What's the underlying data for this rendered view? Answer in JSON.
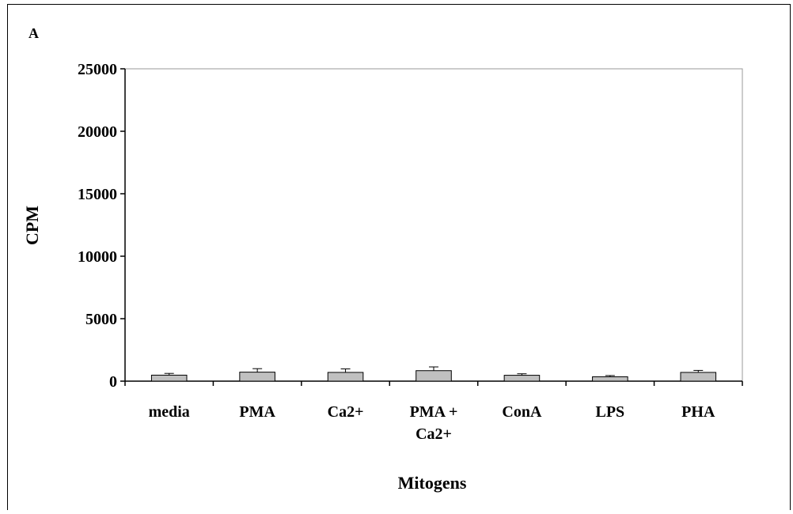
{
  "chart_data": {
    "type": "bar",
    "panel_label": "A",
    "title": "",
    "xlabel": "Mitogens",
    "ylabel": "CPM",
    "ylim": [
      0,
      25000
    ],
    "yticks": [
      0,
      5000,
      10000,
      15000,
      20000,
      25000
    ],
    "categories": [
      [
        "media"
      ],
      [
        "PMA"
      ],
      [
        "Ca2+"
      ],
      [
        "PMA +",
        "Ca2+"
      ],
      [
        "ConA"
      ],
      [
        "LPS"
      ],
      [
        "PHA"
      ]
    ],
    "values": [
      480,
      720,
      700,
      840,
      470,
      350,
      700
    ],
    "errors": [
      140,
      280,
      280,
      300,
      120,
      100,
      160
    ],
    "grid": false,
    "legend": "none",
    "colors": {
      "bar_fill": "#c0c0c0",
      "bar_stroke": "#000000",
      "axis": "#000000",
      "plot_border": "#999999"
    }
  }
}
